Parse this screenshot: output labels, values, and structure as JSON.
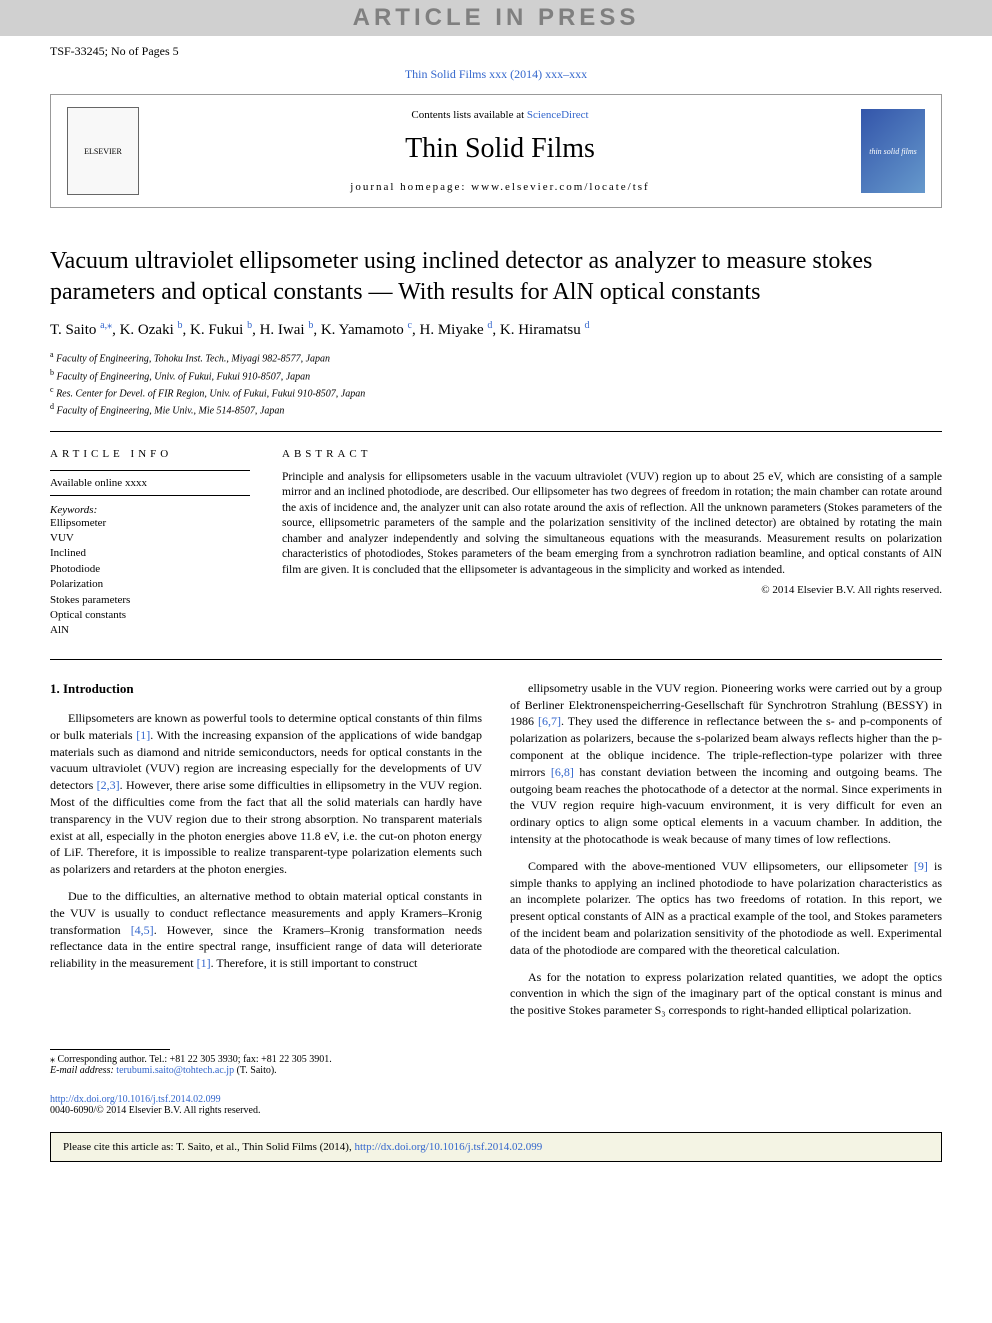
{
  "colors": {
    "banner_bg": "#d0d0d0",
    "banner_text": "#808080",
    "link": "#3366cc",
    "text": "#000000",
    "cite_bg": "#f4f4e4",
    "cover_bg": "#3355aa"
  },
  "banner": "ARTICLE IN PRESS",
  "header": {
    "doc_id": "TSF-33245; No of Pages 5",
    "journal_ref": "Thin Solid Films xxx (2014) xxx–xxx"
  },
  "journalBox": {
    "contents_prefix": "Contents lists available at ",
    "contents_link": "ScienceDirect",
    "journal_name": "Thin Solid Films",
    "homepage": "journal homepage: www.elsevier.com/locate/tsf",
    "publisher_logo": "ELSEVIER",
    "cover_label": "thin solid films"
  },
  "title": "Vacuum ultraviolet ellipsometer using inclined detector as analyzer to measure stokes parameters and optical constants — With results for AlN optical constants",
  "authors": [
    {
      "name": "T. Saito",
      "aff": "a",
      "corr": true
    },
    {
      "name": "K. Ozaki",
      "aff": "b"
    },
    {
      "name": "K. Fukui",
      "aff": "b"
    },
    {
      "name": "H. Iwai",
      "aff": "b"
    },
    {
      "name": "K. Yamamoto",
      "aff": "c"
    },
    {
      "name": "H. Miyake",
      "aff": "d"
    },
    {
      "name": "K. Hiramatsu",
      "aff": "d"
    }
  ],
  "affiliations": [
    {
      "key": "a",
      "text": "Faculty of Engineering, Tohoku Inst. Tech., Miyagi 982-8577, Japan"
    },
    {
      "key": "b",
      "text": "Faculty of Engineering, Univ. of Fukui, Fukui 910-8507, Japan"
    },
    {
      "key": "c",
      "text": "Res. Center for Devel. of FIR Region, Univ. of Fukui, Fukui 910-8507, Japan"
    },
    {
      "key": "d",
      "text": "Faculty of Engineering, Mie Univ., Mie 514-8507, Japan"
    }
  ],
  "articleInfo": {
    "heading": "article info",
    "available": "Available online xxxx",
    "keywords_label": "Keywords:",
    "keywords": [
      "Ellipsometer",
      "VUV",
      "Inclined",
      "Photodiode",
      "Polarization",
      "Stokes parameters",
      "Optical constants",
      "AlN"
    ]
  },
  "abstract": {
    "heading": "abstract",
    "text": "Principle and analysis for ellipsometers usable in the vacuum ultraviolet (VUV) region up to about 25 eV, which are consisting of a sample mirror and an inclined photodiode, are described. Our ellipsometer has two degrees of freedom in rotation; the main chamber can rotate around the axis of incidence and, the analyzer unit can also rotate around the axis of reflection. All the unknown parameters (Stokes parameters of the source, ellipsometric parameters of the sample and the polarization sensitivity of the inclined detector) are obtained by rotating the main chamber and analyzer independently and solving the simultaneous equations with the measurands. Measurement results on polarization characteristics of photodiodes, Stokes parameters of the beam emerging from a synchrotron radiation beamline, and optical constants of AlN film are given. It is concluded that the ellipsometer is advantageous in the simplicity and worked as intended.",
    "copyright": "© 2014 Elsevier B.V. All rights reserved."
  },
  "body": {
    "section_heading": "1. Introduction",
    "left_paragraphs": [
      "Ellipsometers are known as powerful tools to determine optical constants of thin films or bulk materials [1]. With the increasing expansion of the applications of wide bandgap materials such as diamond and nitride semiconductors, needs for optical constants in the vacuum ultraviolet (VUV) region are increasing especially for the developments of UV detectors [2,3]. However, there arise some difficulties in ellipsometry in the VUV region. Most of the difficulties come from the fact that all the solid materials can hardly have transparency in the VUV region due to their strong absorption. No transparent materials exist at all, especially in the photon energies above 11.8 eV, i.e. the cut-on photon energy of LiF. Therefore, it is impossible to realize transparent-type polarization elements such as polarizers and retarders at the photon energies.",
      "Due to the difficulties, an alternative method to obtain material optical constants in the VUV is usually to conduct reflectance measurements and apply Kramers–Kronig transformation [4,5]. However, since the Kramers–Kronig transformation needs reflectance data in the entire spectral range, insufficient range of data will deteriorate reliability in the measurement [1]. Therefore, it is still important to construct"
    ],
    "right_paragraphs": [
      "ellipsometry usable in the VUV region. Pioneering works were carried out by a group of Berliner Elektronenspeicherring-Gesellschaft für Synchrotron Strahlung (BESSY) in 1986 [6,7]. They used the difference in reflectance between the s- and p-components of polarization as polarizers, because the s-polarized beam always reflects higher than the p-component at the oblique incidence. The triple-reflection-type polarizer with three mirrors [6,8] has constant deviation between the incoming and outgoing beams. The outgoing beam reaches the photocathode of a detector at the normal. Since experiments in the VUV region require high-vacuum environment, it is very difficult for even an ordinary optics to align some optical elements in a vacuum chamber. In addition, the intensity at the photocathode is weak because of many times of low reflections.",
      "Compared with the above-mentioned VUV ellipsometers, our ellipsometer [9] is simple thanks to applying an inclined photodiode to have polarization characteristics as an incomplete polarizer. The optics has two freedoms of rotation. In this report, we present optical constants of AlN as a practical example of the tool, and Stokes parameters of the incident beam and polarization sensitivity of the photodiode as well. Experimental data of the photodiode are compared with the theoretical calculation.",
      "As for the notation to express polarization related quantities, we adopt the optics convention in which the sign of the imaginary part of the optical constant is minus and the positive Stokes parameter S₃ corresponds to right-handed elliptical polarization."
    ]
  },
  "footnote": {
    "corr": "⁎ Corresponding author. Tel.: +81 22 305 3930; fax: +81 22 305 3901.",
    "email_label": "E-mail address:",
    "email": "terubumi.saito@tohtech.ac.jp",
    "email_person": "(T. Saito)."
  },
  "doi": {
    "url": "http://dx.doi.org/10.1016/j.tsf.2014.02.099",
    "copyright": "0040-6090/© 2014 Elsevier B.V. All rights reserved."
  },
  "citeBox": {
    "prefix": "Please cite this article as: T. Saito, et al., Thin Solid Films (2014), ",
    "url": "http://dx.doi.org/10.1016/j.tsf.2014.02.099"
  }
}
